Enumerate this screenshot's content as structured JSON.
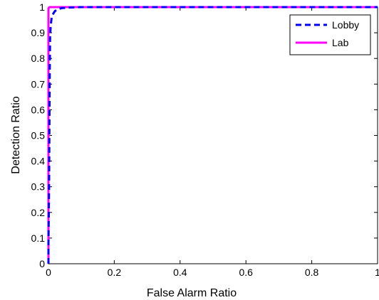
{
  "chart_data": {
    "type": "line",
    "title": "",
    "xlabel": "False Alarm Ratio",
    "ylabel": "Detection Ratio",
    "xlim": [
      0,
      1
    ],
    "ylim": [
      0,
      1
    ],
    "grid": false,
    "legend_position": "top-right",
    "x_ticks": [
      0,
      0.2,
      0.4,
      0.6,
      0.8,
      1
    ],
    "x_tick_labels": [
      "0",
      "0.2",
      "0.4",
      "0.6",
      "0.8",
      "1"
    ],
    "y_ticks": [
      0,
      0.1,
      0.2,
      0.3,
      0.4,
      0.5,
      0.6,
      0.7,
      0.8,
      0.9,
      1
    ],
    "y_tick_labels": [
      "0",
      "0.1",
      "0.2",
      "0.3",
      "0.4",
      "0.5",
      "0.6",
      "0.7",
      "0.8",
      "0.9",
      "1"
    ],
    "series": [
      {
        "name": "Lobby",
        "color": "#0000ff",
        "line_style": "dashed",
        "x": [
          0.0,
          0.0,
          0.002,
          0.003,
          0.004,
          0.005,
          0.007,
          0.01,
          0.015,
          0.02,
          0.03,
          0.04,
          0.06,
          0.1,
          0.3,
          0.6,
          1.0
        ],
        "y": [
          0.0,
          0.07,
          0.3,
          0.55,
          0.75,
          0.88,
          0.93,
          0.96,
          0.975,
          0.985,
          0.992,
          0.996,
          0.998,
          1.0,
          1.0,
          1.0,
          1.0
        ]
      },
      {
        "name": "Lab",
        "color": "#ff00ff",
        "line_style": "solid",
        "x": [
          0.0,
          0.0,
          0.003,
          0.01,
          0.3,
          0.6,
          1.0
        ],
        "y": [
          0.0,
          0.995,
          1.0,
          1.0,
          1.0,
          1.0,
          1.0
        ]
      }
    ]
  }
}
